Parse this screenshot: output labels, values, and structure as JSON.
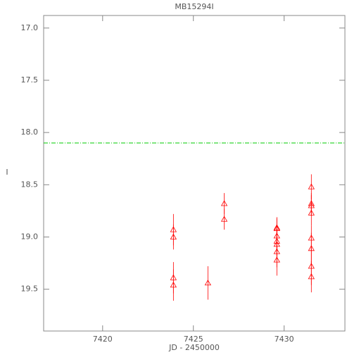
{
  "chart_data": {
    "type": "scatter",
    "title": "MB15294I",
    "x_label": "JD - 2450000",
    "y_label": "I",
    "xlim": [
      7416.75,
      7433.35
    ],
    "xticks": [
      7420,
      7425,
      7430
    ],
    "ylim": [
      19.9,
      16.88
    ],
    "yticks": [
      {
        "value": 17,
        "label": "17.0"
      },
      17.5,
      {
        "value": 18,
        "label": "18.0"
      },
      18.5,
      {
        "value": 19,
        "label": "19.0"
      },
      19.5
    ],
    "hline": {
      "value": 18.1,
      "color": "#00cc00"
    },
    "series": [
      {
        "color": "#ff0000",
        "x": [
          7423.9,
          7423.9,
          7423.9,
          7423.9,
          7425.8,
          7426.7,
          7426.7,
          7429.6,
          7429.6,
          7429.6,
          7429.6,
          7429.6,
          7429.6,
          7429.6,
          7431.5,
          7431.5,
          7431.5,
          7431.5,
          7431.5,
          7431.5,
          7431.5,
          7431.5
        ],
        "values": [
          18.93,
          19.0,
          19.39,
          19.46,
          19.44,
          18.68,
          18.83,
          18.91,
          18.92,
          18.99,
          19.04,
          19.07,
          19.14,
          19.22,
          18.52,
          18.68,
          18.7,
          18.77,
          19.01,
          19.11,
          19.28,
          19.38
        ],
        "errors": [
          0.15,
          0.12,
          0.15,
          0.15,
          0.16,
          0.1,
          0.1,
          0.1,
          0.1,
          0.1,
          0.12,
          0.12,
          0.15,
          0.15,
          0.12,
          0.1,
          0.1,
          0.12,
          0.12,
          0.15,
          0.18,
          0.15
        ]
      }
    ]
  }
}
